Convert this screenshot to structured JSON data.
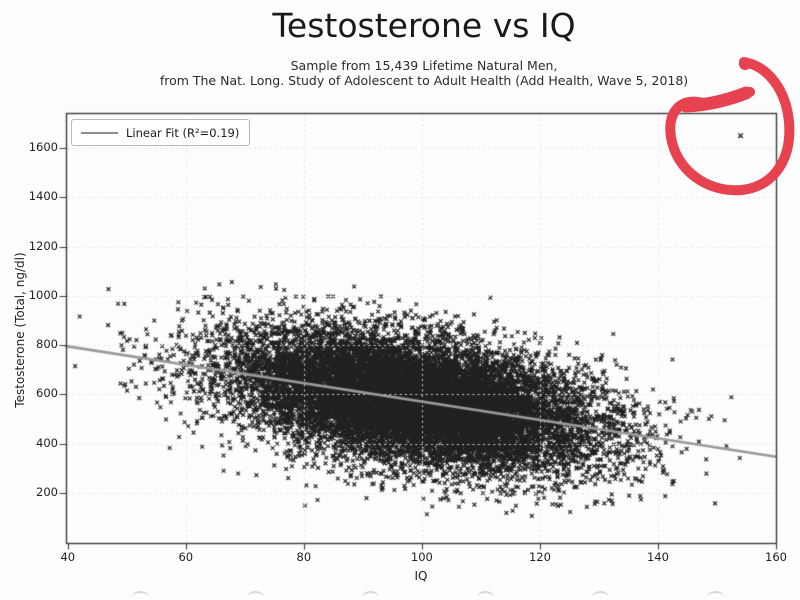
{
  "page": {
    "background": "#fdfdfd"
  },
  "chart_data": {
    "type": "scatter",
    "title": "Testosterone vs IQ",
    "subtitle": [
      "Sample from 15,439 Lifetime Natural Men,",
      "from The Nat. Long. Study of Adolescent to Adult Health (Add Health, Wave 5, 2018)"
    ],
    "xlabel": "IQ",
    "ylabel": "Testosterone (Total, ng/dl)",
    "x_ticks": [
      40,
      60,
      80,
      100,
      120,
      140,
      160
    ],
    "y_ticks": [
      200,
      400,
      600,
      800,
      1000,
      1200,
      1400,
      1600
    ],
    "xlim": [
      39.7,
      160
    ],
    "ylim": [
      -3,
      1742
    ],
    "grid": {
      "visible": true,
      "style": "dotted",
      "color": "#e0e0e0",
      "x_values": [
        60,
        80,
        100,
        120,
        140
      ],
      "y_values": [
        200,
        400,
        600,
        800,
        1000,
        1200,
        1400,
        1600
      ]
    },
    "legend": {
      "label": "Linear Fit (R²=0.19)",
      "position": "upper left",
      "line_color": "#8f8f8f"
    },
    "n_points": 15439,
    "marker": "x",
    "marker_color": "#141414",
    "distribution": {
      "seed": 15439,
      "iq_mean": 98.5,
      "iq_std": 15.5,
      "iq_range": [
        41,
        158
      ],
      "fit_intercept": 944,
      "fit_slope": -3.73,
      "residual_std": 125,
      "t_range": [
        105,
        1080
      ]
    },
    "fit_line": {
      "x": [
        39.7,
        160
      ],
      "y": [
        796,
        347
      ],
      "r_squared": 0.19,
      "color": "#999999"
    },
    "outliers": [
      {
        "iq": 154,
        "testosterone": 1650
      }
    ],
    "annotation": {
      "type": "hand-drawn-circle",
      "color": "#e74250",
      "around": {
        "iq": 154,
        "testosterone": 1650
      }
    }
  }
}
